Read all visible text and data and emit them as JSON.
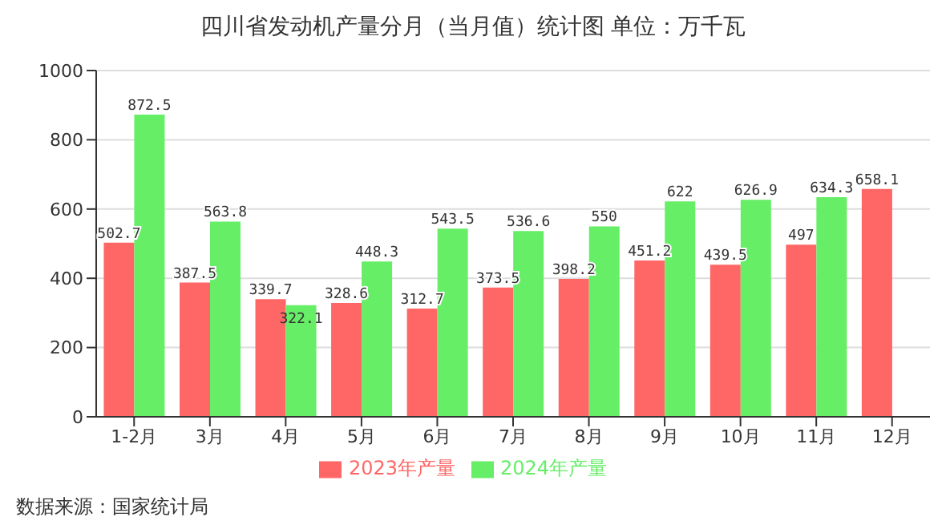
{
  "chart_data": {
    "type": "bar",
    "title": "四川省发动机产量分月（当月值）统计图 单位：万千瓦",
    "categories": [
      "1-2月",
      "3月",
      "4月",
      "5月",
      "6月",
      "7月",
      "8月",
      "9月",
      "10月",
      "11月",
      "12月"
    ],
    "series": [
      {
        "name": "2023年产量",
        "color": "#ff6666",
        "values": [
          502.7,
          387.5,
          339.7,
          328.6,
          312.7,
          373.5,
          398.2,
          451.2,
          439.5,
          497,
          658.1
        ]
      },
      {
        "name": "2024年产量",
        "color": "#66ee66",
        "values": [
          872.5,
          563.8,
          322.1,
          448.3,
          543.5,
          536.6,
          550,
          622,
          626.9,
          634.3,
          null
        ]
      }
    ],
    "ylim": [
      0,
      1000
    ],
    "yticks": [
      0,
      200,
      400,
      600,
      800,
      1000
    ],
    "grid": "y",
    "legend": "bottom",
    "data_labels": true,
    "annotations": [
      "数据来源：国家统计局"
    ]
  }
}
